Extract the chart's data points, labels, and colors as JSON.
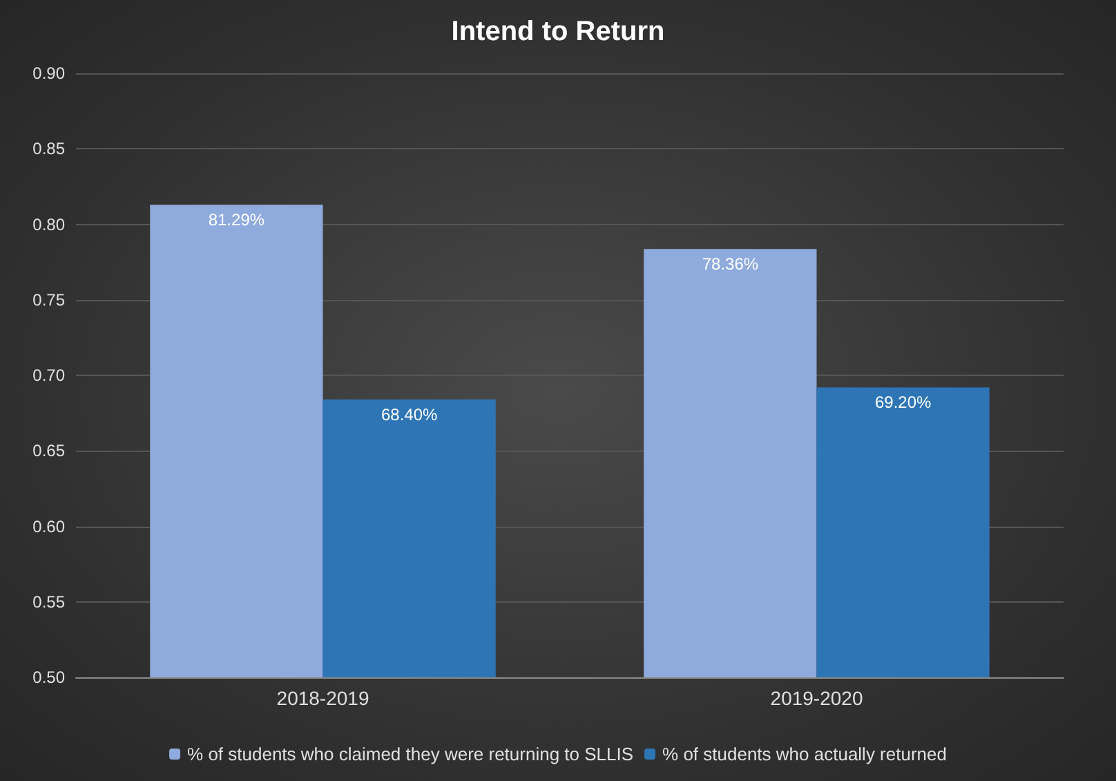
{
  "chart_data": {
    "type": "bar",
    "title": "Intend to Return",
    "categories": [
      "2018-2019",
      "2019-2020"
    ],
    "series": [
      {
        "name": "% of students who claimed they were returning to SLLIS",
        "color": "#8faadc",
        "values": [
          0.8129,
          0.7836
        ],
        "value_labels": [
          "81.29%",
          "78.36%"
        ]
      },
      {
        "name": "% of students who actually returned",
        "color": "#2e75b6",
        "values": [
          0.684,
          0.692
        ],
        "value_labels": [
          "68.40%",
          "69.20%"
        ]
      }
    ],
    "ylim": [
      0.5,
      0.9
    ],
    "yticks": [
      {
        "value": 0.5,
        "label": "0.50"
      },
      {
        "value": 0.55,
        "label": "0.55"
      },
      {
        "value": 0.6,
        "label": "0.60"
      },
      {
        "value": 0.65,
        "label": "0.65"
      },
      {
        "value": 0.7,
        "label": "0.70"
      },
      {
        "value": 0.75,
        "label": "0.75"
      },
      {
        "value": 0.8,
        "label": "0.80"
      },
      {
        "value": 0.85,
        "label": "0.85"
      },
      {
        "value": 0.9,
        "label": "0.90"
      }
    ],
    "grid": "y",
    "legend": "bottom"
  }
}
